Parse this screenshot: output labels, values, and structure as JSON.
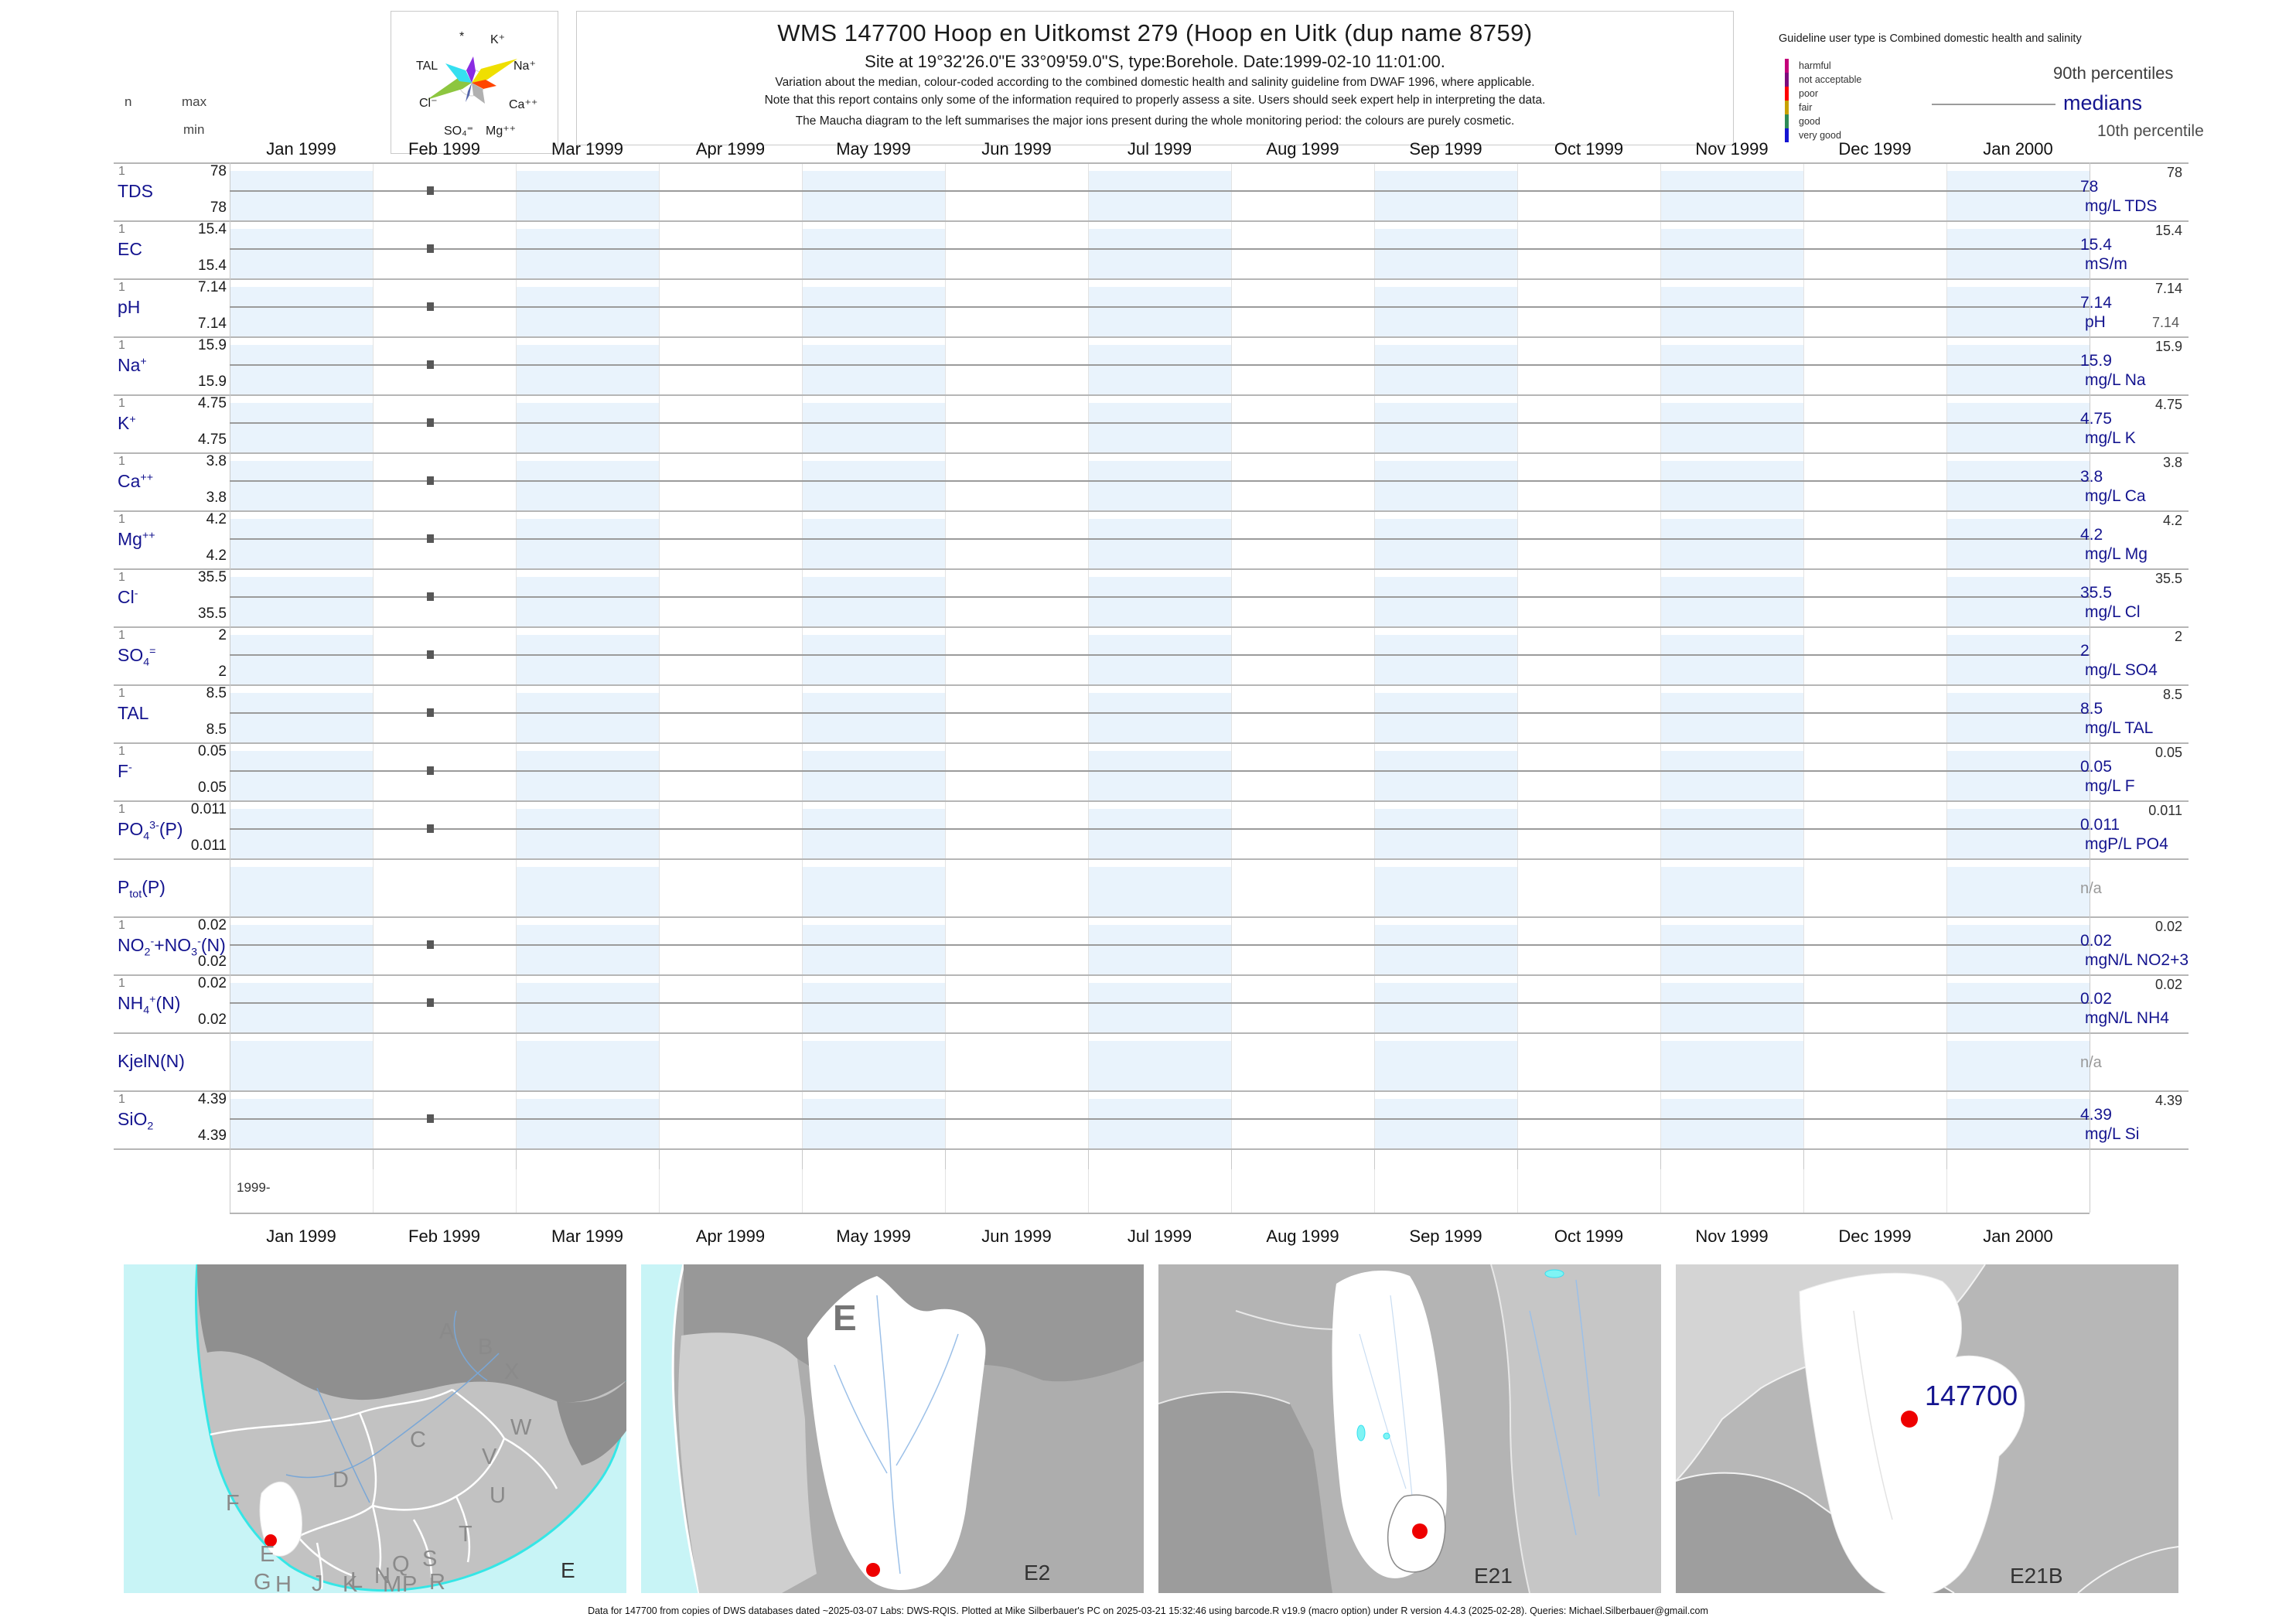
{
  "header": {
    "title": "WMS 147700  Hoop en Uitkomst 279 (Hoop en Uitk (dup name 8759)",
    "site_line": "Site at 19°32'26.0\"E 33°09'59.0\"S, type:Borehole. Date:1999-02-10 11:01:00.",
    "note1": "Variation about the median,  colour-coded according to the combined domestic health and salinity guideline from DWAF 1996, where applicable.",
    "note2": "Note that this report contains only some of the information required to properly assess a site. Users should seek expert help in interpreting the data.",
    "note3": "The Maucha diagram to the left summarises the major ions present during the whole monitoring period: the colours are purely cosmetic.",
    "n_label": "n",
    "max_label": "max",
    "min_label": "min"
  },
  "maucha": {
    "labels": [
      "*",
      "K⁺",
      "TAL",
      "Na⁺",
      "Cl⁻",
      "Ca⁺⁺",
      "SO₄⁼",
      "Mg⁺⁺"
    ]
  },
  "guideline": {
    "header": "Guideline user type is Combined domestic health and salinity",
    "classes": [
      {
        "label": "harmful",
        "color": "#c4007a"
      },
      {
        "label": "not acceptable",
        "color": "#7d0c7d"
      },
      {
        "label": "poor",
        "color": "#ff0000"
      },
      {
        "label": "fair",
        "color": "#c7a100"
      },
      {
        "label": "good",
        "color": "#2e8b57"
      },
      {
        "label": "very good",
        "color": "#1414d2"
      }
    ],
    "p90_label": "90th percentiles",
    "median_label": "medians",
    "p10_label": "10th percentile",
    "median_color": "#14148f"
  },
  "months": [
    "Jan 1999",
    "Feb 1999",
    "Mar 1999",
    "Apr 1999",
    "May 1999",
    "Jun 1999",
    "Jul 1999",
    "Aug 1999",
    "Sep 1999",
    "Oct 1999",
    "Nov 1999",
    "Dec 1999",
    "Jan 2000"
  ],
  "year_axis_label": "1999-",
  "rows": [
    {
      "name": [
        [
          "TDS",
          0
        ]
      ],
      "n": "1",
      "max": "78",
      "min": "78",
      "median": "78",
      "p90": "78",
      "p10": "",
      "unit": "mg/L TDS",
      "has_data": true
    },
    {
      "name": [
        [
          "EC",
          0
        ]
      ],
      "n": "1",
      "max": "15.4",
      "min": "15.4",
      "median": "15.4",
      "p90": "15.4",
      "p10": "",
      "unit": "mS/m",
      "has_data": true
    },
    {
      "name": [
        [
          "pH",
          0
        ]
      ],
      "n": "1",
      "max": "7.14",
      "min": "7.14",
      "median": "7.14",
      "p90": "7.14",
      "p10": "7.14",
      "unit": "pH",
      "has_data": true
    },
    {
      "name": [
        [
          "Na",
          0
        ],
        [
          "+",
          1
        ]
      ],
      "n": "1",
      "max": "15.9",
      "min": "15.9",
      "median": "15.9",
      "p90": "15.9",
      "p10": "",
      "unit": "mg/L Na",
      "has_data": true
    },
    {
      "name": [
        [
          "K",
          0
        ],
        [
          "+",
          1
        ]
      ],
      "n": "1",
      "max": "4.75",
      "min": "4.75",
      "median": "4.75",
      "p90": "4.75",
      "p10": "",
      "unit": "mg/L K",
      "has_data": true
    },
    {
      "name": [
        [
          "Ca",
          0
        ],
        [
          "++",
          1
        ]
      ],
      "n": "1",
      "max": "3.8",
      "min": "3.8",
      "median": "3.8",
      "p90": "3.8",
      "p10": "",
      "unit": "mg/L Ca",
      "has_data": true
    },
    {
      "name": [
        [
          "Mg",
          0
        ],
        [
          "++",
          1
        ]
      ],
      "n": "1",
      "max": "4.2",
      "min": "4.2",
      "median": "4.2",
      "p90": "4.2",
      "p10": "",
      "unit": "mg/L Mg",
      "has_data": true
    },
    {
      "name": [
        [
          "Cl",
          0
        ],
        [
          "-",
          1
        ]
      ],
      "n": "1",
      "max": "35.5",
      "min": "35.5",
      "median": "35.5",
      "p90": "35.5",
      "p10": "",
      "unit": "mg/L Cl",
      "has_data": true
    },
    {
      "name": [
        [
          "SO",
          0
        ],
        [
          "4",
          2
        ],
        [
          "=",
          1
        ]
      ],
      "n": "1",
      "max": "2",
      "min": "2",
      "median": "2",
      "p90": "2",
      "p10": "",
      "unit": "mg/L SO4",
      "has_data": true
    },
    {
      "name": [
        [
          "TAL",
          0
        ]
      ],
      "n": "1",
      "max": "8.5",
      "min": "8.5",
      "median": "8.5",
      "p90": "8.5",
      "p10": "",
      "unit": "mg/L TAL",
      "has_data": true
    },
    {
      "name": [
        [
          "F",
          0
        ],
        [
          "-",
          1
        ]
      ],
      "n": "1",
      "max": "0.05",
      "min": "0.05",
      "median": "0.05",
      "p90": "0.05",
      "p10": "",
      "unit": "mg/L F",
      "has_data": true
    },
    {
      "name": [
        [
          "PO",
          0
        ],
        [
          "4",
          2
        ],
        [
          "3-",
          1
        ],
        [
          "(P)",
          0
        ]
      ],
      "n": "1",
      "max": "0.011",
      "min": "0.011",
      "median": "0.011",
      "p90": "0.011",
      "p10": "",
      "unit": "mgP/L PO4",
      "has_data": true
    },
    {
      "name": [
        [
          "P",
          0
        ],
        [
          "tot",
          2
        ],
        [
          "(P)",
          0
        ]
      ],
      "n": "",
      "max": "",
      "min": "",
      "median": "",
      "p90": "",
      "p10": "",
      "unit": "",
      "na": "n/a",
      "has_data": false
    },
    {
      "name": [
        [
          "NO",
          0
        ],
        [
          "2",
          2
        ],
        [
          "-",
          1
        ],
        [
          "+NO",
          0
        ],
        [
          "3",
          2
        ],
        [
          "-",
          1
        ],
        [
          "(N)",
          0
        ]
      ],
      "n": "1",
      "max": "0.02",
      "min": "0.02",
      "median": "0.02",
      "p90": "0.02",
      "p10": "",
      "unit": "mgN/L NO2+3",
      "has_data": true
    },
    {
      "name": [
        [
          "NH",
          0
        ],
        [
          "4",
          2
        ],
        [
          "+",
          1
        ],
        [
          "(N)",
          0
        ]
      ],
      "n": "1",
      "max": "0.02",
      "min": "0.02",
      "median": "0.02",
      "p90": "0.02",
      "p10": "",
      "unit": "mgN/L NH4",
      "has_data": true
    },
    {
      "name": [
        [
          "KjelN(N)",
          0
        ]
      ],
      "n": "",
      "max": "",
      "min": "",
      "median": "",
      "p90": "",
      "p10": "",
      "unit": "",
      "na": "n/a",
      "has_data": false
    },
    {
      "name": [
        [
          "SiO",
          0
        ],
        [
          "2",
          2
        ]
      ],
      "n": "1",
      "max": "4.39",
      "min": "4.39",
      "median": "4.39",
      "p90": "4.39",
      "p10": "",
      "unit": "mg/L Si",
      "has_data": true
    }
  ],
  "chart_data": {
    "type": "scatter",
    "title": "WMS 147700 Hoop en Uitkomst 279 (Hoop en Uitk (dup name 8759)",
    "x_range": [
      "Jan 1999",
      "Jan 2000"
    ],
    "sample_dates": [
      "1999-02-10"
    ],
    "n_samples": 1,
    "legend": [
      "90th percentiles",
      "medians",
      "10th percentile"
    ],
    "legend_position": "top-right",
    "grid": "alternating month bands",
    "series": [
      {
        "name": "TDS",
        "unit": "mg/L",
        "values": [
          78
        ],
        "median": 78,
        "p90": 78,
        "p10": 78
      },
      {
        "name": "EC",
        "unit": "mS/m",
        "values": [
          15.4
        ],
        "median": 15.4,
        "p90": 15.4,
        "p10": 15.4
      },
      {
        "name": "pH",
        "unit": "pH",
        "values": [
          7.14
        ],
        "median": 7.14,
        "p90": 7.14,
        "p10": 7.14
      },
      {
        "name": "Na",
        "unit": "mg/L",
        "values": [
          15.9
        ],
        "median": 15.9,
        "p90": 15.9,
        "p10": 15.9
      },
      {
        "name": "K",
        "unit": "mg/L",
        "values": [
          4.75
        ],
        "median": 4.75,
        "p90": 4.75,
        "p10": 4.75
      },
      {
        "name": "Ca",
        "unit": "mg/L",
        "values": [
          3.8
        ],
        "median": 3.8,
        "p90": 3.8,
        "p10": 3.8
      },
      {
        "name": "Mg",
        "unit": "mg/L",
        "values": [
          4.2
        ],
        "median": 4.2,
        "p90": 4.2,
        "p10": 4.2
      },
      {
        "name": "Cl",
        "unit": "mg/L",
        "values": [
          35.5
        ],
        "median": 35.5,
        "p90": 35.5,
        "p10": 35.5
      },
      {
        "name": "SO4",
        "unit": "mg/L",
        "values": [
          2
        ],
        "median": 2,
        "p90": 2,
        "p10": 2
      },
      {
        "name": "TAL",
        "unit": "mg/L",
        "values": [
          8.5
        ],
        "median": 8.5,
        "p90": 8.5,
        "p10": 8.5
      },
      {
        "name": "F",
        "unit": "mg/L",
        "values": [
          0.05
        ],
        "median": 0.05,
        "p90": 0.05,
        "p10": 0.05
      },
      {
        "name": "PO4(P)",
        "unit": "mgP/L",
        "values": [
          0.011
        ],
        "median": 0.011,
        "p90": 0.011,
        "p10": 0.011
      },
      {
        "name": "Ptot(P)",
        "unit": "",
        "values": [],
        "note": "n/a"
      },
      {
        "name": "NO2+NO3(N)",
        "unit": "mgN/L",
        "values": [
          0.02
        ],
        "median": 0.02,
        "p90": 0.02,
        "p10": 0.02
      },
      {
        "name": "NH4(N)",
        "unit": "mgN/L",
        "values": [
          0.02
        ],
        "median": 0.02,
        "p90": 0.02,
        "p10": 0.02
      },
      {
        "name": "KjelN(N)",
        "unit": "",
        "values": [],
        "note": "n/a"
      },
      {
        "name": "SiO2",
        "unit": "mg/L",
        "values": [
          4.39
        ],
        "median": 4.39,
        "p90": 4.39,
        "p10": 4.39
      }
    ]
  },
  "maps": [
    {
      "code": "E",
      "letters": [
        "A",
        "B",
        "X",
        "C",
        "W",
        "D",
        "V",
        "U",
        "F",
        "E",
        "T",
        "S",
        "Q",
        "R",
        "N",
        "L",
        "P",
        "M",
        "J",
        "K",
        "G",
        "H"
      ]
    },
    {
      "code": "E2",
      "region_label": "E"
    },
    {
      "code": "E21"
    },
    {
      "code": "E21B",
      "station_label": "147700"
    }
  ],
  "station": {
    "id": "147700",
    "dot_color": "#ee0000"
  },
  "footer": "Data for 147700 from copies of DWS databases dated ~2025-03-07 Labs: DWS-RQIS. Plotted at Mike Silberbauer's PC on 2025-03-21 15:32:46 using barcode.R v19.9 (macro option) under R version 4.4.3 (2025-02-28). Queries: Michael.Silberbauer@gmail.com"
}
